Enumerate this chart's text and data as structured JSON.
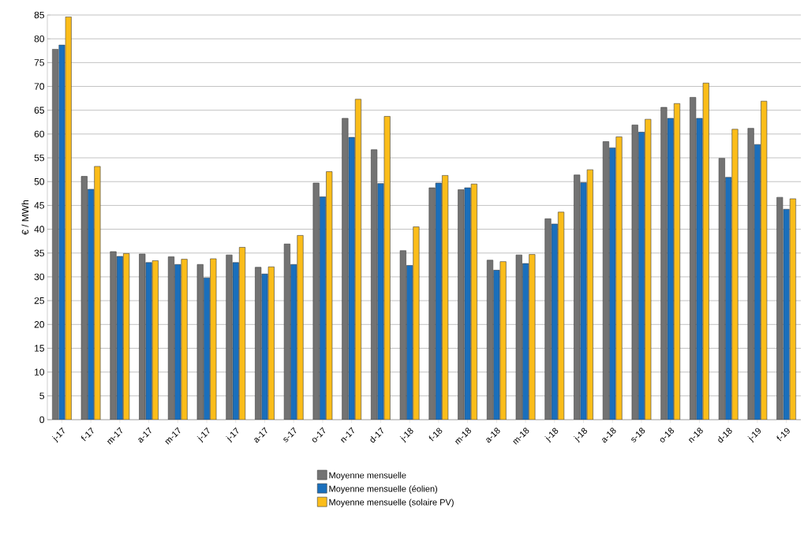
{
  "chart_data": {
    "type": "bar",
    "ylabel": "€ / MWh",
    "categories": [
      "j-17",
      "f-17",
      "m-17",
      "a-17",
      "m-17",
      "j-17",
      "j-17",
      "a-17",
      "s-17",
      "o-17",
      "n-17",
      "d-17",
      "j-18",
      "f-18",
      "m-18",
      "a-18",
      "m-18",
      "j-18",
      "j-18",
      "a-18",
      "s-18",
      "o-18",
      "n-18",
      "d-18",
      "j-19",
      "f-19"
    ],
    "series": [
      {
        "name": "Moyenne mensuelle",
        "color": "#737373",
        "values": [
          77.8,
          51.1,
          35.3,
          34.8,
          34.2,
          32.6,
          34.6,
          32.0,
          36.9,
          49.7,
          63.3,
          56.7,
          35.5,
          48.7,
          48.3,
          33.5,
          34.6,
          42.2,
          51.4,
          58.4,
          61.9,
          65.6,
          67.7,
          54.9,
          61.2,
          46.7
        ]
      },
      {
        "name": "Moyenne mensuelle (éolien)",
        "color": "#1a6fbc",
        "values": [
          78.7,
          48.4,
          34.3,
          33.0,
          32.6,
          29.8,
          33.0,
          30.6,
          32.6,
          46.8,
          59.3,
          49.6,
          32.4,
          49.7,
          48.7,
          31.4,
          32.8,
          41.1,
          49.8,
          57.1,
          60.4,
          63.3,
          63.3,
          50.9,
          57.8,
          44.2
        ]
      },
      {
        "name": "Moyenne mensuelle (solaire PV)",
        "color": "#fbbd1a",
        "values": [
          84.6,
          53.2,
          34.9,
          33.4,
          33.7,
          33.8,
          36.2,
          32.1,
          38.7,
          52.1,
          67.3,
          63.7,
          40.5,
          51.3,
          49.5,
          33.2,
          34.7,
          43.6,
          52.5,
          59.4,
          63.1,
          66.4,
          70.7,
          61.0,
          66.9,
          46.4
        ]
      }
    ],
    "ylim": [
      0,
      85
    ],
    "yticks": [
      0,
      5,
      10,
      15,
      20,
      25,
      30,
      35,
      40,
      45,
      50,
      55,
      60,
      65,
      70,
      75,
      80,
      85
    ],
    "grid": "y",
    "legend": "bottom"
  }
}
